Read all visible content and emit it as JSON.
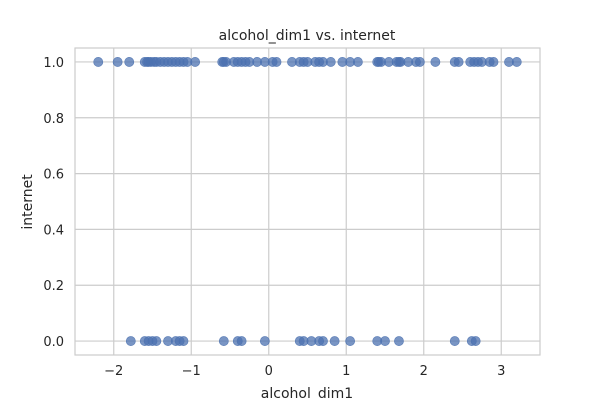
{
  "chart_data": {
    "type": "scatter",
    "title": "alcohol_dim1 vs. internet",
    "xlabel": "alcohol_dim1",
    "ylabel": "internet",
    "xlim": [
      -2.5,
      3.5
    ],
    "ylim": [
      -0.05,
      1.05
    ],
    "xticks": [
      -2,
      -1,
      0,
      1,
      2,
      3
    ],
    "xtick_labels": [
      "−2",
      "−1",
      "0",
      "1",
      "2",
      "3"
    ],
    "yticks": [
      0.0,
      0.2,
      0.4,
      0.6,
      0.8,
      1.0
    ],
    "ytick_labels": [
      "0.0",
      "0.2",
      "0.4",
      "0.6",
      "0.8",
      "1.0"
    ],
    "grid": true,
    "color": "#4c72b0",
    "series": [
      {
        "x": [
          -2.2,
          -1.95,
          -1.8,
          -1.6,
          -1.57,
          -1.55,
          -1.52,
          -1.48,
          -1.45,
          -1.4,
          -1.35,
          -1.3,
          -1.25,
          -1.2,
          -1.15,
          -1.1,
          -1.05,
          -0.95,
          -0.6,
          -0.58,
          -0.55,
          -0.45,
          -0.4,
          -0.35,
          -0.3,
          -0.25,
          -0.15,
          -0.05,
          0.05,
          0.1,
          0.3,
          0.4,
          0.45,
          0.5,
          0.6,
          0.65,
          0.7,
          0.8,
          0.95,
          1.05,
          1.15,
          1.4,
          1.42,
          1.45,
          1.55,
          1.65,
          1.68,
          1.7,
          1.8,
          1.9,
          1.95,
          2.15,
          2.4,
          2.45,
          2.6,
          2.65,
          2.7,
          2.75,
          2.85,
          2.9,
          3.1,
          3.2
        ],
        "y": [
          1,
          1,
          1,
          1,
          1,
          1,
          1,
          1,
          1,
          1,
          1,
          1,
          1,
          1,
          1,
          1,
          1,
          1,
          1,
          1,
          1,
          1,
          1,
          1,
          1,
          1,
          1,
          1,
          1,
          1,
          1,
          1,
          1,
          1,
          1,
          1,
          1,
          1,
          1,
          1,
          1,
          1,
          1,
          1,
          1,
          1,
          1,
          1,
          1,
          1,
          1,
          1,
          1,
          1,
          1,
          1,
          1,
          1,
          1,
          1,
          1,
          1
        ]
      },
      {
        "x": [
          -1.78,
          -1.6,
          -1.55,
          -1.5,
          -1.45,
          -1.3,
          -1.2,
          -1.15,
          -1.1,
          -0.58,
          -0.4,
          -0.35,
          -0.05,
          0.4,
          0.45,
          0.55,
          0.65,
          0.7,
          0.85,
          1.05,
          1.4,
          1.5,
          1.68,
          2.4,
          2.62,
          2.67
        ],
        "y": [
          0,
          0,
          0,
          0,
          0,
          0,
          0,
          0,
          0,
          0,
          0,
          0,
          0,
          0,
          0,
          0,
          0,
          0,
          0,
          0,
          0,
          0,
          0,
          0,
          0,
          0
        ]
      }
    ]
  }
}
